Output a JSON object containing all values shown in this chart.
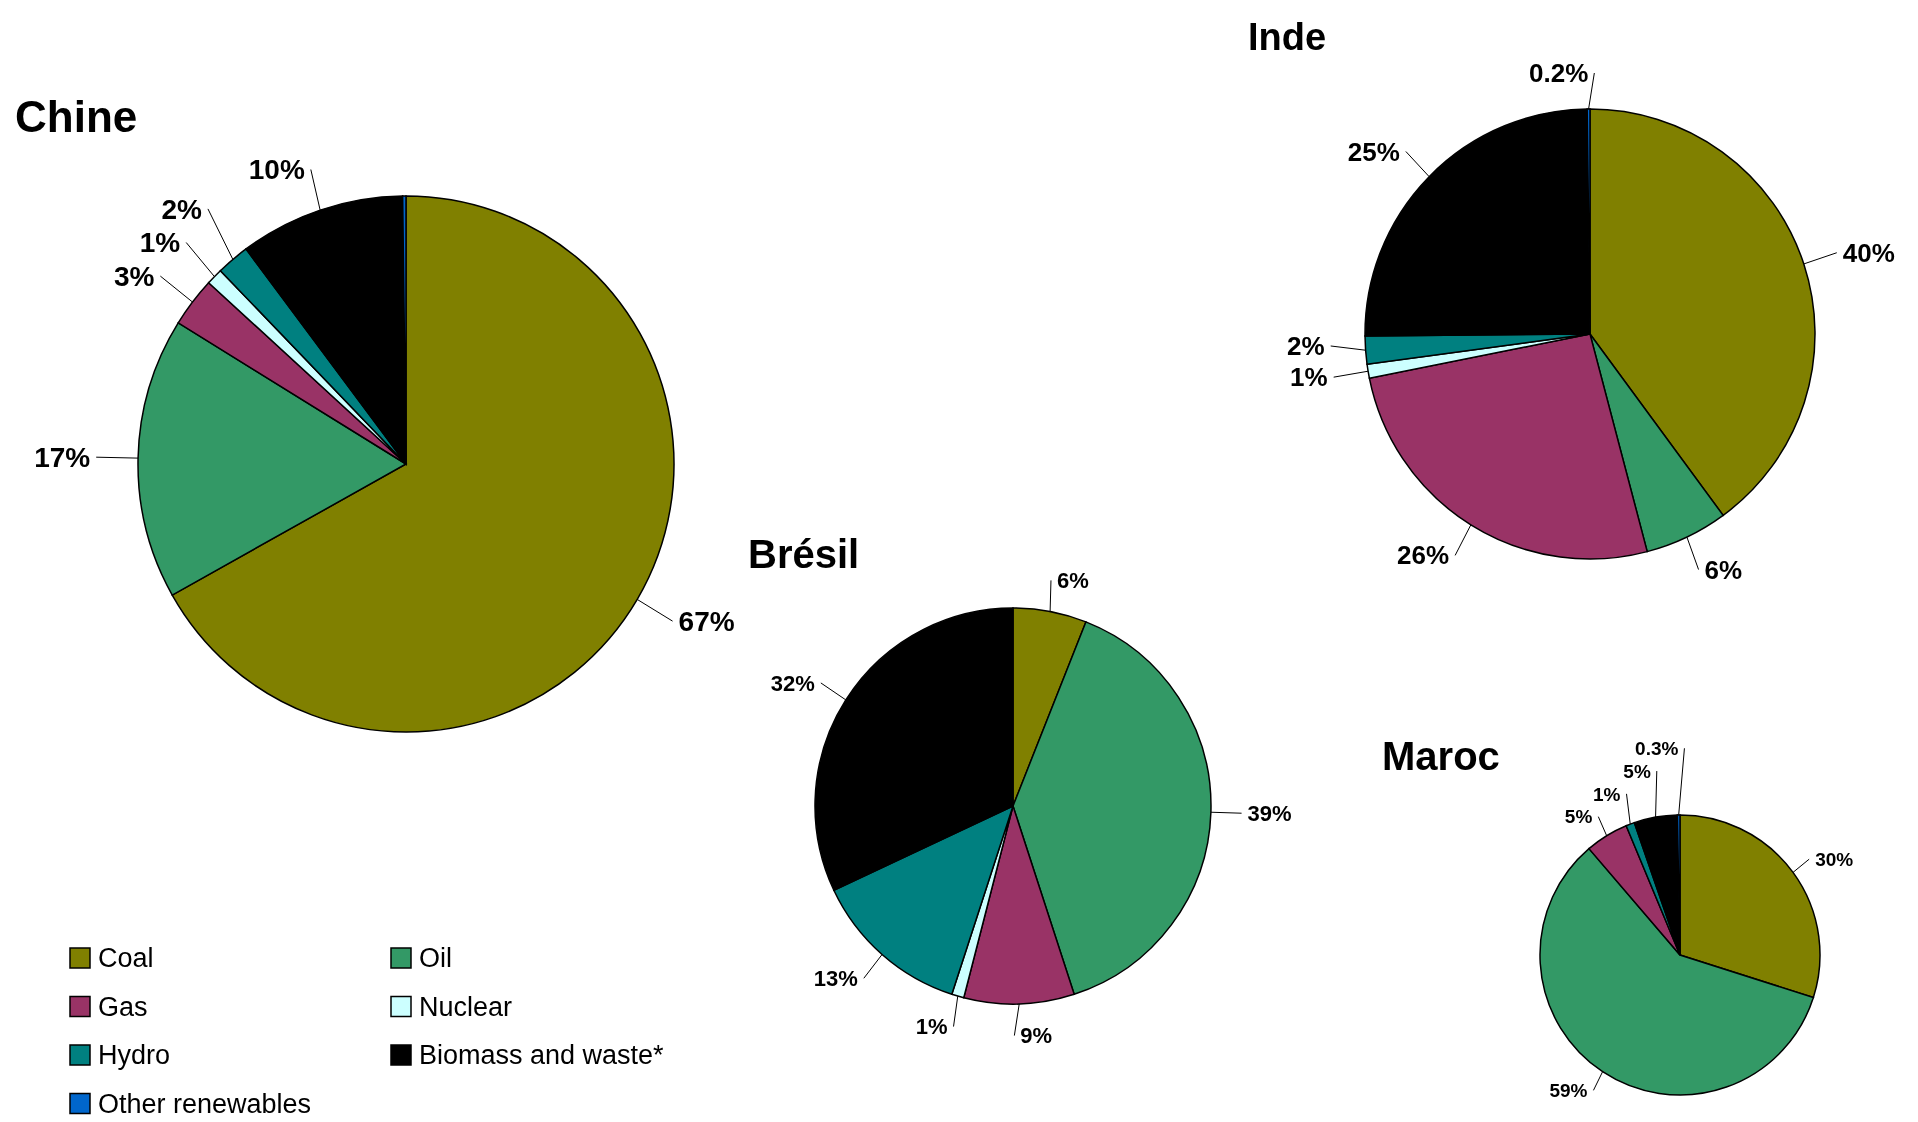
{
  "chart_data": [
    {
      "type": "pie",
      "title": "Chine",
      "legend": "bottom left",
      "categories": [
        "Coal",
        "Oil",
        "Gas",
        "Nuclear",
        "Hydro",
        "Biomass and waste*",
        "Other renewables"
      ],
      "values": [
        67,
        17,
        3,
        1,
        2,
        10,
        0.2
      ],
      "value_labels": [
        "67%",
        "17%",
        "3%",
        "1%",
        "2%",
        "10%",
        null
      ],
      "colors": [
        "#808000",
        "#339966",
        "#993366",
        "#ccffff",
        "#008080",
        "#000000",
        "#0066cc"
      ]
    },
    {
      "type": "pie",
      "title": "Inde",
      "categories": [
        null,
        null,
        null,
        null,
        null,
        null,
        null
      ],
      "values": [
        40,
        6,
        26,
        1,
        2,
        25,
        0.2
      ],
      "value_labels": [
        "40%",
        "6%",
        "26%",
        "1%",
        "2%",
        "25%",
        "0.2%"
      ],
      "colors": [
        "#808000",
        "#339966",
        "#993366",
        "#ccffff",
        "#008080",
        "#000000",
        "#0066cc"
      ]
    },
    {
      "type": "pie",
      "title": "Brésil",
      "categories": [
        null,
        null,
        null,
        null,
        null,
        null
      ],
      "values": [
        6,
        39,
        9,
        1,
        13,
        32
      ],
      "value_labels": [
        "6%",
        "39%",
        "9%",
        "1%",
        "13%",
        "32%"
      ],
      "colors": [
        "#808000",
        "#339966",
        "#993366",
        "#ccffff",
        "#008080",
        "#000000"
      ]
    },
    {
      "type": "pie",
      "title": "Maroc",
      "categories": [
        null,
        null,
        null,
        null,
        null,
        null
      ],
      "values": [
        30,
        59,
        5,
        1,
        5,
        0.3
      ],
      "value_labels": [
        "30%",
        "59%",
        "5%",
        "1%",
        "5%",
        "0.3%"
      ],
      "colors": [
        "#808000",
        "#339966",
        "#993366",
        "#008080",
        "#000000",
        "#0066cc"
      ]
    }
  ]
}
